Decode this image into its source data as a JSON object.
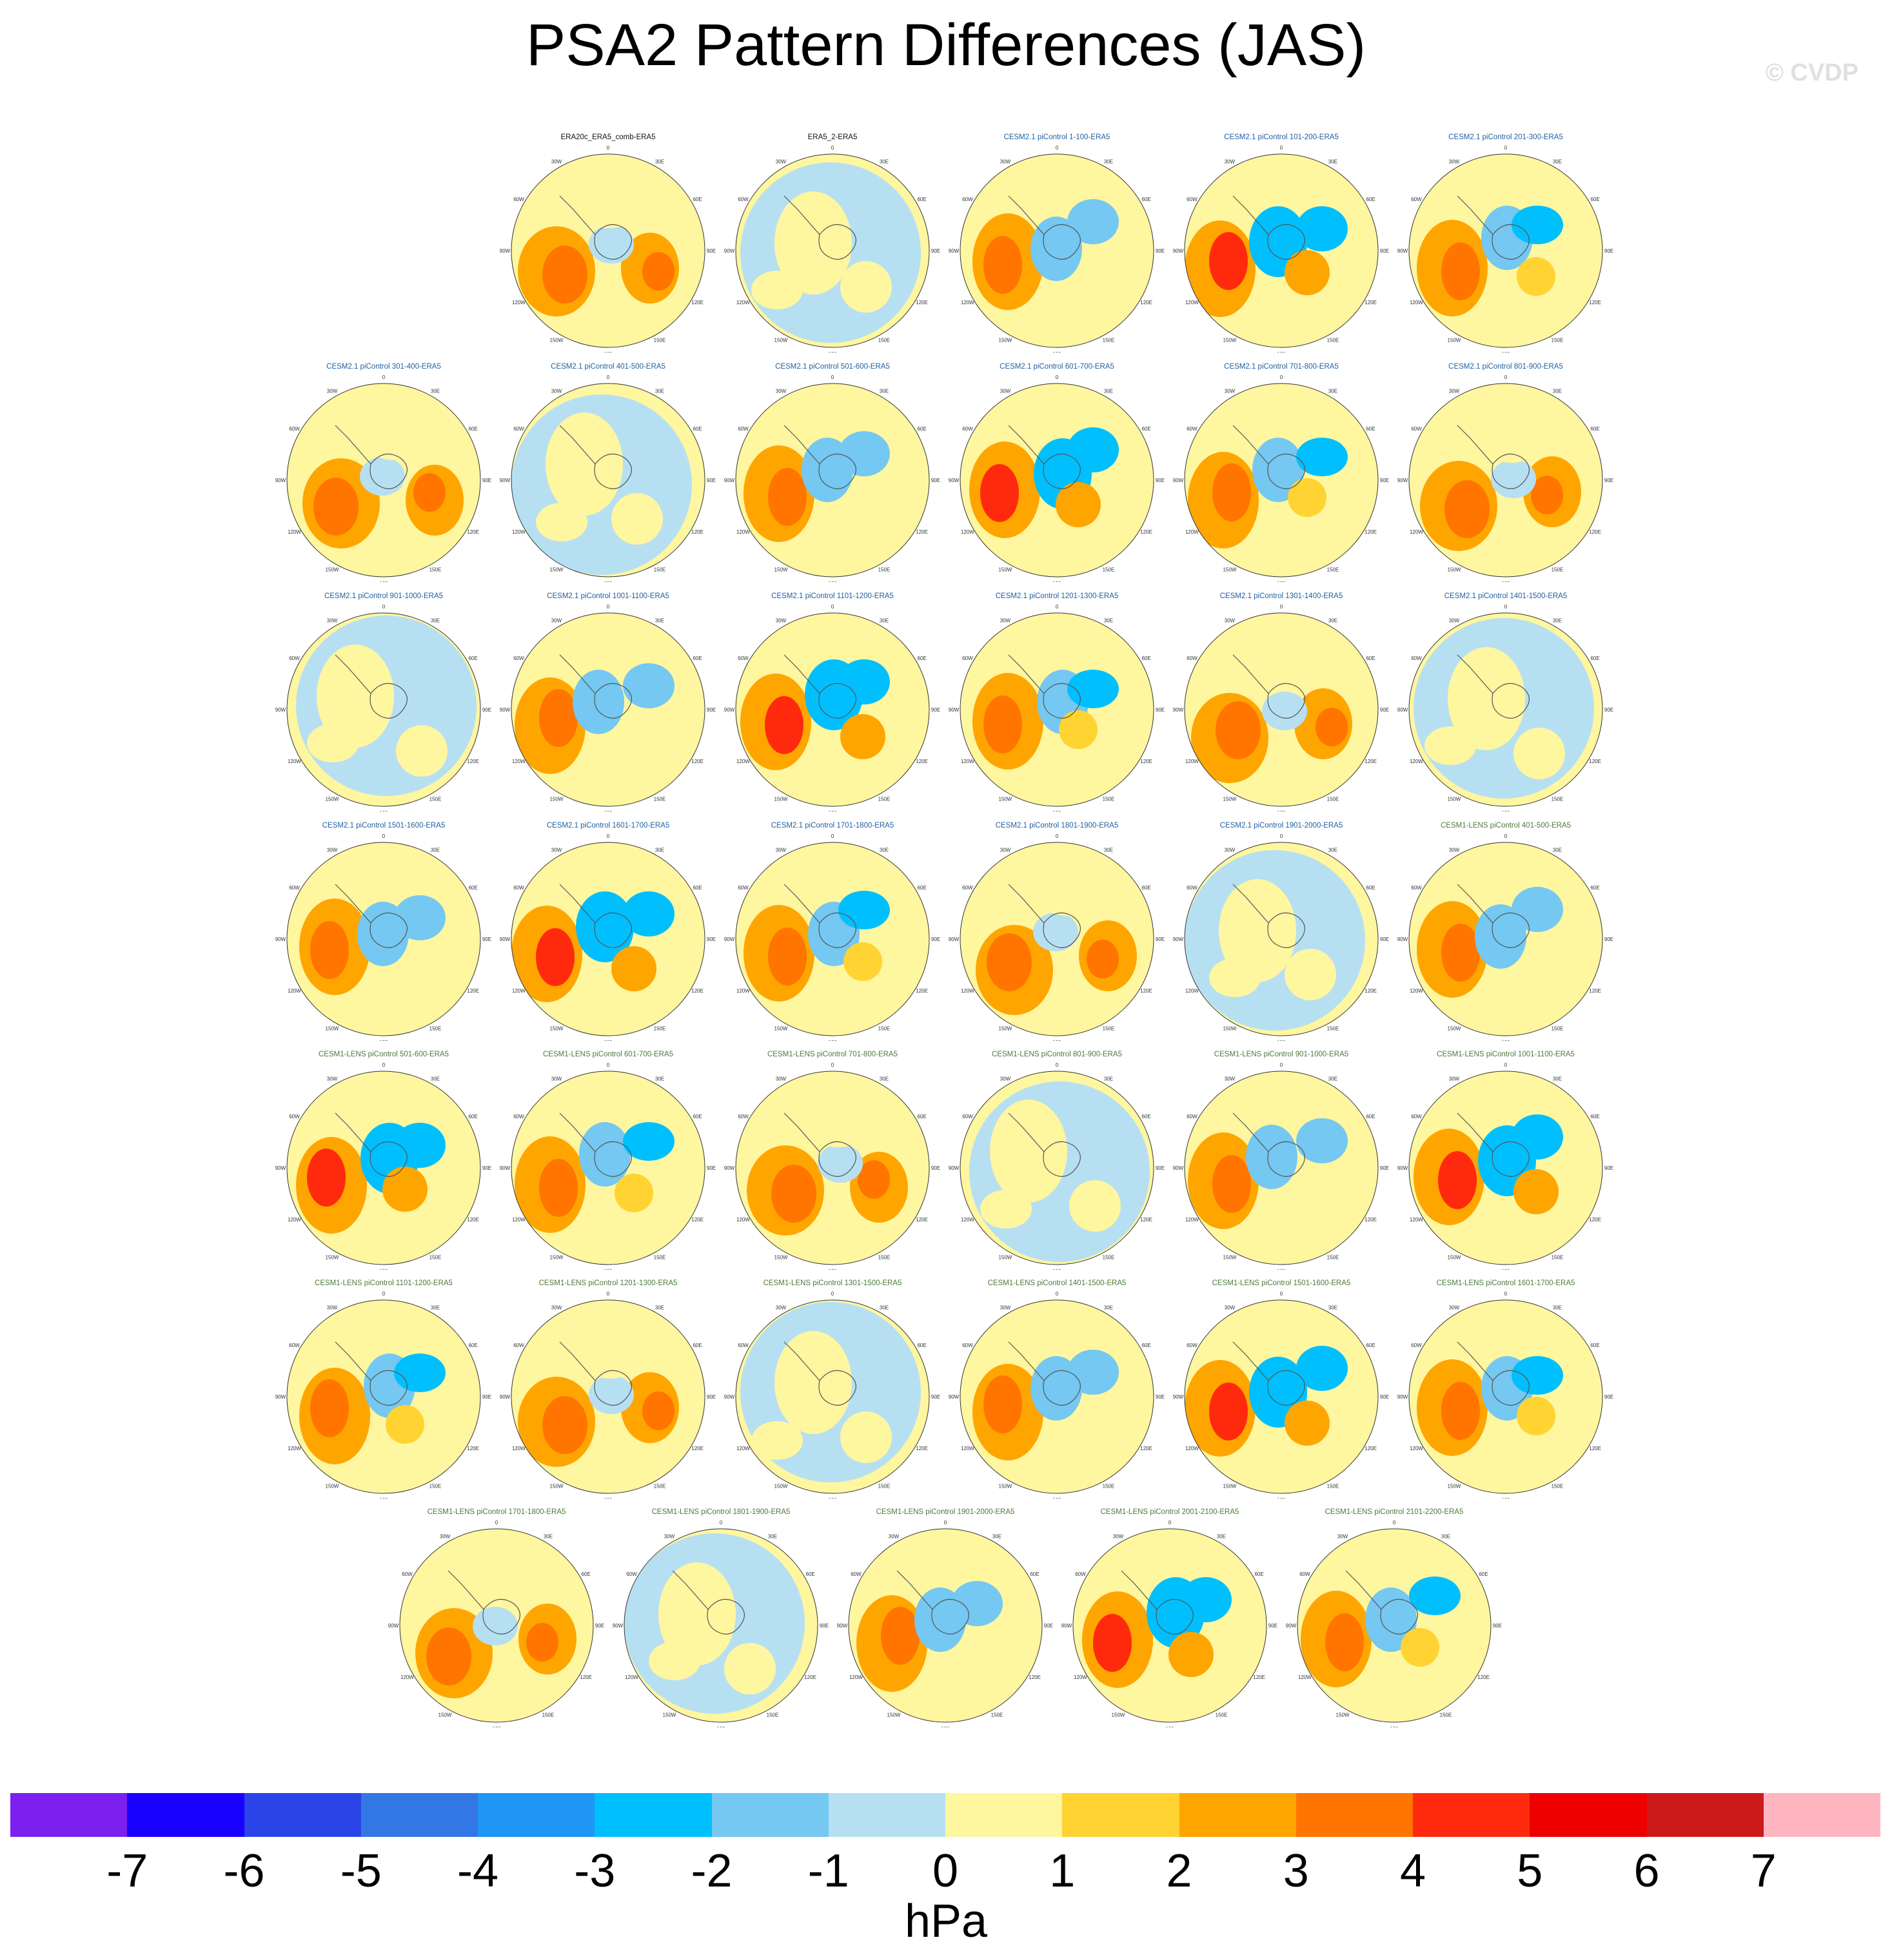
{
  "title": "PSA2 Pattern Differences (JAS)",
  "watermark": "© CVDP",
  "colorbar": {
    "units": "hPa",
    "ticks": [
      "-7",
      "-6",
      "-5",
      "-4",
      "-3",
      "-2",
      "-1",
      "0",
      "1",
      "2",
      "3",
      "4",
      "5",
      "6",
      "7"
    ],
    "colors": [
      "#7b20ee",
      "#1a00ff",
      "#2a44e8",
      "#3377e4",
      "#1f95f5",
      "#00bfff",
      "#74c8f1",
      "#b6e0f2",
      "#fff6a0",
      "#ffd332",
      "#ffa500",
      "#ff7500",
      "#ff2a0d",
      "#ee0000",
      "#cc1a1a",
      "#ffb6c1"
    ]
  },
  "map_labels": {
    "lon_top": "0",
    "lon_30e": "30E",
    "lon_60e": "60E",
    "lon_90e": "90E",
    "lon_120e": "120E",
    "lon_150e": "150E",
    "lon_180": "180",
    "lon_150w": "150W",
    "lon_120w": "120W",
    "lon_90w": "90W",
    "lon_60w": "60W",
    "lon_30w": "30W"
  },
  "panels": [
    {
      "title": "ERA20c_ERA5_comb-ERA5",
      "source": "obs"
    },
    {
      "title": "ERA5_2-ERA5",
      "source": "obs"
    },
    {
      "title": "CESM2.1 piControl 1-100-ERA5",
      "source": "cesm2"
    },
    {
      "title": "CESM2.1 piControl 101-200-ERA5",
      "source": "cesm2"
    },
    {
      "title": "CESM2.1 piControl 201-300-ERA5",
      "source": "cesm2"
    },
    {
      "title": "CESM2.1 piControl 301-400-ERA5",
      "source": "cesm2"
    },
    {
      "title": "CESM2.1 piControl 401-500-ERA5",
      "source": "cesm2"
    },
    {
      "title": "CESM2.1 piControl 501-600-ERA5",
      "source": "cesm2"
    },
    {
      "title": "CESM2.1 piControl 601-700-ERA5",
      "source": "cesm2"
    },
    {
      "title": "CESM2.1 piControl 701-800-ERA5",
      "source": "cesm2"
    },
    {
      "title": "CESM2.1 piControl 801-900-ERA5",
      "source": "cesm2"
    },
    {
      "title": "CESM2.1 piControl 901-1000-ERA5",
      "source": "cesm2"
    },
    {
      "title": "CESM2.1 piControl 1001-1100-ERA5",
      "source": "cesm2"
    },
    {
      "title": "CESM2.1 piControl 1101-1200-ERA5",
      "source": "cesm2"
    },
    {
      "title": "CESM2.1 piControl 1201-1300-ERA5",
      "source": "cesm2"
    },
    {
      "title": "CESM2.1 piControl 1301-1400-ERA5",
      "source": "cesm2"
    },
    {
      "title": "CESM2.1 piControl 1401-1500-ERA5",
      "source": "cesm2"
    },
    {
      "title": "CESM2.1 piControl 1501-1600-ERA5",
      "source": "cesm2"
    },
    {
      "title": "CESM2.1 piControl 1601-1700-ERA5",
      "source": "cesm2"
    },
    {
      "title": "CESM2.1 piControl 1701-1800-ERA5",
      "source": "cesm2"
    },
    {
      "title": "CESM2.1 piControl 1801-1900-ERA5",
      "source": "cesm2"
    },
    {
      "title": "CESM2.1 piControl 1901-2000-ERA5",
      "source": "cesm2"
    },
    {
      "title": "CESM1-LENS piControl 401-500-ERA5",
      "source": "cesm1"
    },
    {
      "title": "CESM1-LENS piControl 501-600-ERA5",
      "source": "cesm1"
    },
    {
      "title": "CESM1-LENS piControl 601-700-ERA5",
      "source": "cesm1"
    },
    {
      "title": "CESM1-LENS piControl 701-800-ERA5",
      "source": "cesm1"
    },
    {
      "title": "CESM1-LENS piControl 801-900-ERA5",
      "source": "cesm1"
    },
    {
      "title": "CESM1-LENS piControl 901-1000-ERA5",
      "source": "cesm1"
    },
    {
      "title": "CESM1-LENS piControl 1001-1100-ERA5",
      "source": "cesm1"
    },
    {
      "title": "CESM1-LENS piControl 1101-1200-ERA5",
      "source": "cesm1"
    },
    {
      "title": "CESM1-LENS piControl 1201-1300-ERA5",
      "source": "cesm1"
    },
    {
      "title": "CESM1-LENS piControl 1301-1500-ERA5",
      "source": "cesm1"
    },
    {
      "title": "CESM1-LENS piControl 1401-1500-ERA5",
      "source": "cesm1"
    },
    {
      "title": "CESM1-LENS piControl 1501-1600-ERA5",
      "source": "cesm1"
    },
    {
      "title": "CESM1-LENS piControl 1601-1700-ERA5",
      "source": "cesm1"
    },
    {
      "title": "CESM1-LENS piControl 1701-1800-ERA5",
      "source": "cesm1"
    },
    {
      "title": "CESM1-LENS piControl 1801-1900-ERA5",
      "source": "cesm1"
    },
    {
      "title": "CESM1-LENS piControl 1901-2000-ERA5",
      "source": "cesm1"
    },
    {
      "title": "CESM1-LENS piControl 2001-2100-ERA5",
      "source": "cesm1"
    },
    {
      "title": "CESM1-LENS piControl 2101-2200-ERA5",
      "source": "cesm1"
    }
  ]
}
